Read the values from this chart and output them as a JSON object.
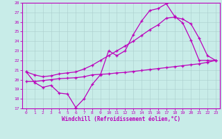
{
  "xlabel": "Windchill (Refroidissement éolien,°C)",
  "bg_color": "#c8ece8",
  "line_color": "#bb00bb",
  "grid_color": "#aacccc",
  "xlim": [
    -0.5,
    23.5
  ],
  "ylim": [
    17,
    28
  ],
  "yticks": [
    17,
    18,
    19,
    20,
    21,
    22,
    23,
    24,
    25,
    26,
    27,
    28
  ],
  "xticks": [
    0,
    1,
    2,
    3,
    4,
    5,
    6,
    7,
    8,
    9,
    10,
    11,
    12,
    13,
    14,
    15,
    16,
    17,
    18,
    19,
    20,
    21,
    22,
    23
  ],
  "series1_x": [
    0,
    1,
    2,
    3,
    4,
    5,
    6,
    7,
    8,
    9,
    10,
    11,
    12,
    13,
    14,
    15,
    16,
    17,
    18,
    19,
    20,
    21,
    22,
    23
  ],
  "series1_y": [
    20.8,
    19.7,
    19.2,
    19.4,
    18.6,
    18.5,
    17.1,
    18.0,
    19.5,
    20.5,
    23.0,
    22.5,
    23.0,
    24.7,
    26.1,
    27.2,
    27.4,
    27.9,
    26.6,
    25.9,
    24.1,
    22.0,
    22.0,
    22.0
  ],
  "series2_x": [
    0,
    1,
    2,
    3,
    4,
    5,
    6,
    7,
    8,
    9,
    10,
    11,
    12,
    13,
    14,
    15,
    16,
    17,
    18,
    19,
    20,
    21,
    22,
    23
  ],
  "series2_y": [
    19.8,
    19.8,
    19.9,
    20.0,
    20.1,
    20.15,
    20.2,
    20.3,
    20.5,
    20.55,
    20.6,
    20.7,
    20.75,
    20.85,
    20.95,
    21.05,
    21.15,
    21.25,
    21.35,
    21.45,
    21.55,
    21.65,
    21.8,
    22.0
  ],
  "series3_x": [
    0,
    1,
    2,
    3,
    4,
    5,
    6,
    7,
    8,
    9,
    10,
    11,
    12,
    13,
    14,
    15,
    16,
    17,
    18,
    19,
    20,
    21,
    22,
    23
  ],
  "series3_y": [
    20.8,
    20.5,
    20.3,
    20.4,
    20.6,
    20.7,
    20.8,
    21.1,
    21.5,
    22.0,
    22.5,
    23.0,
    23.5,
    24.0,
    24.6,
    25.2,
    25.7,
    26.4,
    26.5,
    26.3,
    25.8,
    24.3,
    22.5,
    22.0
  ]
}
